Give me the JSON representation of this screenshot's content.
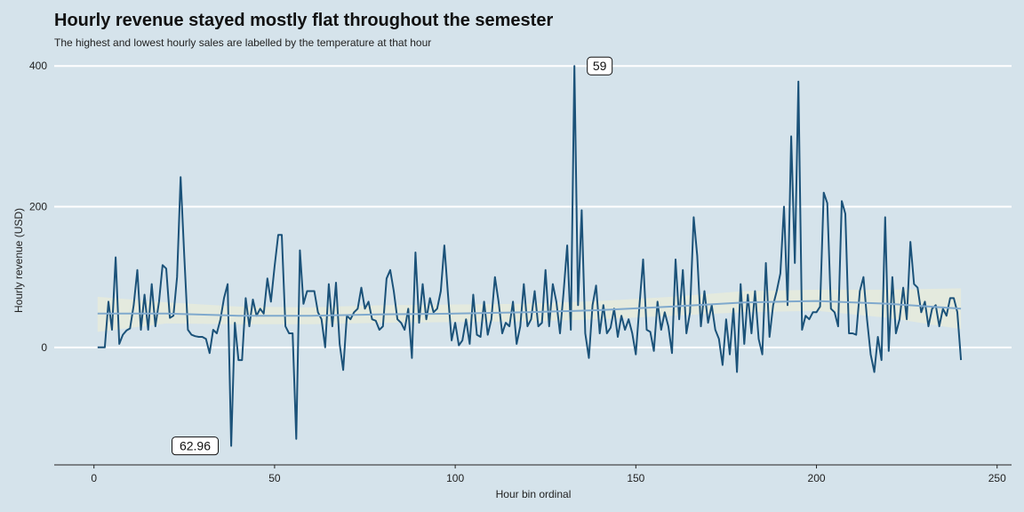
{
  "chart_data": {
    "type": "line",
    "title": "Hourly revenue stayed mostly flat throughout the semester",
    "subtitle": "The highest and lowest hourly sales are labelled by the temperature at that hour",
    "xlabel": "Hour bin ordinal",
    "ylabel": "Hourly revenue (USD)",
    "xlim": [
      -11,
      254
    ],
    "ylim": [
      -167,
      418
    ],
    "x_ticks": [
      0,
      50,
      100,
      150,
      200,
      250
    ],
    "y_ticks": [
      0,
      200,
      400
    ],
    "grid": "horizontal major only",
    "colors": {
      "background": "#d5e3eb",
      "line": "#1b5279",
      "smooth": "#7fa9cd",
      "band": "#e6ebdc",
      "grid": "#ffffff",
      "axis": "#222222"
    },
    "series": [
      {
        "values": [
          [
            1,
            0
          ],
          [
            2,
            0
          ],
          [
            3,
            0
          ],
          [
            4,
            65
          ],
          [
            5,
            25
          ],
          [
            6,
            128
          ],
          [
            7,
            5
          ],
          [
            8,
            18
          ],
          [
            9,
            24
          ],
          [
            10,
            27
          ],
          [
            11,
            60
          ],
          [
            12,
            110
          ],
          [
            13,
            25
          ],
          [
            14,
            75
          ],
          [
            15,
            25
          ],
          [
            16,
            90
          ],
          [
            17,
            30
          ],
          [
            18,
            65
          ],
          [
            19,
            117
          ],
          [
            20,
            112
          ],
          [
            21,
            42
          ],
          [
            22,
            45
          ],
          [
            23,
            100
          ],
          [
            24,
            242
          ],
          [
            25,
            130
          ],
          [
            26,
            25
          ],
          [
            27,
            18
          ],
          [
            28,
            16
          ],
          [
            29,
            15
          ],
          [
            30,
            15
          ],
          [
            31,
            12
          ],
          [
            32,
            -8
          ],
          [
            33,
            25
          ],
          [
            34,
            20
          ],
          [
            35,
            40
          ],
          [
            36,
            70
          ],
          [
            37,
            90
          ],
          [
            38,
            -140
          ],
          [
            39,
            35
          ],
          [
            40,
            -18
          ],
          [
            41,
            -18
          ],
          [
            42,
            70
          ],
          [
            43,
            30
          ],
          [
            44,
            68
          ],
          [
            45,
            45
          ],
          [
            46,
            55
          ],
          [
            47,
            48
          ],
          [
            48,
            98
          ],
          [
            49,
            65
          ],
          [
            50,
            115
          ],
          [
            51,
            160
          ],
          [
            52,
            160
          ],
          [
            53,
            30
          ],
          [
            54,
            20
          ],
          [
            55,
            20
          ],
          [
            56,
            -130
          ],
          [
            57,
            138
          ],
          [
            58,
            62
          ],
          [
            59,
            80
          ],
          [
            60,
            80
          ],
          [
            61,
            80
          ],
          [
            62,
            50
          ],
          [
            63,
            40
          ],
          [
            64,
            0
          ],
          [
            65,
            90
          ],
          [
            66,
            30
          ],
          [
            67,
            92
          ],
          [
            68,
            5
          ],
          [
            69,
            -32
          ],
          [
            70,
            45
          ],
          [
            71,
            40
          ],
          [
            72,
            50
          ],
          [
            73,
            55
          ],
          [
            74,
            85
          ],
          [
            75,
            55
          ],
          [
            76,
            65
          ],
          [
            77,
            40
          ],
          [
            78,
            38
          ],
          [
            79,
            25
          ],
          [
            80,
            30
          ],
          [
            81,
            98
          ],
          [
            82,
            110
          ],
          [
            83,
            80
          ],
          [
            84,
            40
          ],
          [
            85,
            35
          ],
          [
            86,
            25
          ],
          [
            87,
            55
          ],
          [
            88,
            -15
          ],
          [
            89,
            135
          ],
          [
            90,
            35
          ],
          [
            91,
            90
          ],
          [
            92,
            40
          ],
          [
            93,
            70
          ],
          [
            94,
            50
          ],
          [
            95,
            55
          ],
          [
            96,
            80
          ],
          [
            97,
            145
          ],
          [
            98,
            75
          ],
          [
            99,
            10
          ],
          [
            100,
            35
          ],
          [
            101,
            3
          ],
          [
            102,
            10
          ],
          [
            103,
            40
          ],
          [
            104,
            5
          ],
          [
            105,
            75
          ],
          [
            106,
            18
          ],
          [
            107,
            15
          ],
          [
            108,
            65
          ],
          [
            109,
            18
          ],
          [
            110,
            40
          ],
          [
            111,
            100
          ],
          [
            112,
            65
          ],
          [
            113,
            20
          ],
          [
            114,
            35
          ],
          [
            115,
            30
          ],
          [
            116,
            65
          ],
          [
            117,
            5
          ],
          [
            118,
            30
          ],
          [
            119,
            90
          ],
          [
            120,
            30
          ],
          [
            121,
            40
          ],
          [
            122,
            80
          ],
          [
            123,
            30
          ],
          [
            124,
            35
          ],
          [
            125,
            110
          ],
          [
            126,
            30
          ],
          [
            127,
            90
          ],
          [
            128,
            65
          ],
          [
            129,
            20
          ],
          [
            130,
            78
          ],
          [
            131,
            145
          ],
          [
            132,
            25
          ],
          [
            133,
            400
          ],
          [
            134,
            60
          ],
          [
            135,
            195
          ],
          [
            136,
            20
          ],
          [
            137,
            -15
          ],
          [
            138,
            60
          ],
          [
            139,
            88
          ],
          [
            140,
            20
          ],
          [
            141,
            60
          ],
          [
            142,
            20
          ],
          [
            143,
            28
          ],
          [
            144,
            55
          ],
          [
            145,
            15
          ],
          [
            146,
            45
          ],
          [
            147,
            25
          ],
          [
            148,
            40
          ],
          [
            149,
            20
          ],
          [
            150,
            -10
          ],
          [
            151,
            60
          ],
          [
            152,
            125
          ],
          [
            153,
            25
          ],
          [
            154,
            22
          ],
          [
            155,
            -5
          ],
          [
            156,
            65
          ],
          [
            157,
            25
          ],
          [
            158,
            50
          ],
          [
            159,
            30
          ],
          [
            160,
            -8
          ],
          [
            161,
            125
          ],
          [
            162,
            40
          ],
          [
            163,
            110
          ],
          [
            164,
            20
          ],
          [
            165,
            50
          ],
          [
            166,
            185
          ],
          [
            167,
            130
          ],
          [
            168,
            30
          ],
          [
            169,
            80
          ],
          [
            170,
            35
          ],
          [
            171,
            60
          ],
          [
            172,
            25
          ],
          [
            173,
            12
          ],
          [
            174,
            -25
          ],
          [
            175,
            40
          ],
          [
            176,
            -10
          ],
          [
            177,
            55
          ],
          [
            178,
            -35
          ],
          [
            179,
            90
          ],
          [
            180,
            5
          ],
          [
            181,
            75
          ],
          [
            182,
            20
          ],
          [
            183,
            80
          ],
          [
            184,
            12
          ],
          [
            185,
            -10
          ],
          [
            186,
            120
          ],
          [
            187,
            15
          ],
          [
            188,
            60
          ],
          [
            189,
            80
          ],
          [
            190,
            105
          ],
          [
            191,
            200
          ],
          [
            192,
            60
          ],
          [
            193,
            300
          ],
          [
            194,
            120
          ],
          [
            195,
            378
          ],
          [
            196,
            25
          ],
          [
            197,
            45
          ],
          [
            198,
            40
          ],
          [
            199,
            50
          ],
          [
            200,
            50
          ],
          [
            201,
            58
          ],
          [
            202,
            220
          ],
          [
            203,
            205
          ],
          [
            204,
            55
          ],
          [
            205,
            50
          ],
          [
            206,
            30
          ],
          [
            207,
            208
          ],
          [
            208,
            190
          ],
          [
            209,
            20
          ],
          [
            210,
            20
          ],
          [
            211,
            18
          ],
          [
            212,
            80
          ],
          [
            213,
            100
          ],
          [
            214,
            40
          ],
          [
            215,
            -10
          ],
          [
            216,
            -35
          ],
          [
            217,
            15
          ],
          [
            218,
            -18
          ],
          [
            219,
            185
          ],
          [
            220,
            -5
          ],
          [
            221,
            100
          ],
          [
            222,
            20
          ],
          [
            223,
            40
          ],
          [
            224,
            85
          ],
          [
            225,
            40
          ],
          [
            226,
            150
          ],
          [
            227,
            90
          ],
          [
            228,
            85
          ],
          [
            229,
            50
          ],
          [
            230,
            65
          ],
          [
            231,
            30
          ],
          [
            232,
            55
          ],
          [
            233,
            60
          ],
          [
            234,
            30
          ],
          [
            235,
            55
          ],
          [
            236,
            45
          ],
          [
            237,
            70
          ],
          [
            238,
            70
          ],
          [
            239,
            50
          ],
          [
            240,
            -18
          ]
        ]
      }
    ],
    "smooth": [
      [
        1,
        48
      ],
      [
        20,
        48
      ],
      [
        40,
        45
      ],
      [
        60,
        45
      ],
      [
        80,
        47
      ],
      [
        100,
        48
      ],
      [
        120,
        50
      ],
      [
        140,
        53
      ],
      [
        160,
        58
      ],
      [
        180,
        64
      ],
      [
        200,
        66
      ],
      [
        220,
        62
      ],
      [
        240,
        55
      ]
    ],
    "band": [
      [
        1,
        72,
        22
      ],
      [
        20,
        64,
        34
      ],
      [
        40,
        58,
        33
      ],
      [
        60,
        57,
        33
      ],
      [
        80,
        60,
        35
      ],
      [
        100,
        61,
        36
      ],
      [
        120,
        62,
        37
      ],
      [
        140,
        66,
        40
      ],
      [
        160,
        72,
        45
      ],
      [
        180,
        80,
        50
      ],
      [
        200,
        82,
        52
      ],
      [
        220,
        82,
        42
      ],
      [
        240,
        84,
        26
      ]
    ],
    "annotations": [
      {
        "text": "59",
        "x": 140,
        "y": 400
      },
      {
        "text": "62.96",
        "x": 28,
        "y": -140
      }
    ]
  }
}
